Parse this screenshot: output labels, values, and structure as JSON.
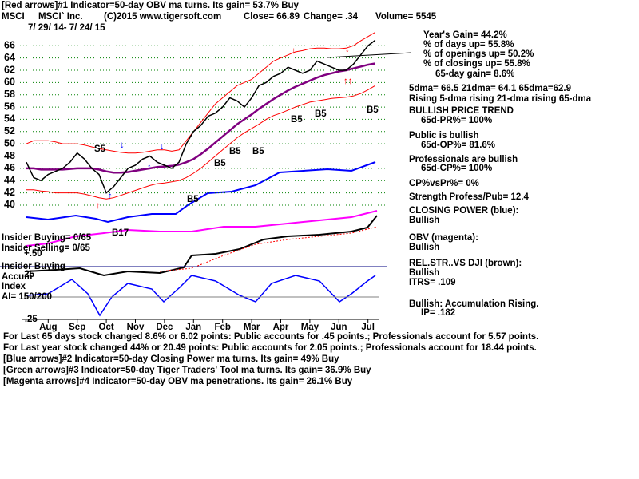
{
  "chart_data": {
    "type": "line",
    "title": "[Red arrows]#1 Indicator=50-day OBV ma turns. Its gain= 53.7% Buy",
    "header": [
      "MSCI",
      "MSCI` Inc.",
      "(C)2015 www.tigersoft.com",
      "Close= 66.89",
      "Change= .34",
      "Volume= 5545"
    ],
    "date_range": "7/ 29/ 14- 7/ 24/ 15",
    "categories": [
      null,
      null,
      null,
      "Aug",
      null,
      null,
      null,
      "Sep",
      null,
      null,
      null,
      "Oct",
      null,
      null,
      null,
      "Nov",
      null,
      null,
      null,
      "Dec",
      null,
      null,
      null,
      "Jan",
      null,
      null,
      null,
      "Feb",
      null,
      null,
      null,
      "Mar",
      null,
      null,
      null,
      "Apr",
      null,
      null,
      null,
      "May",
      null,
      null,
      null,
      "Jun",
      null,
      null,
      null,
      "Jul",
      null
    ],
    "series": [
      {
        "color": "#ff0000",
        "values": [
          50,
          50.5,
          50.5,
          50.5,
          50.3,
          50,
          50,
          50,
          49.8,
          49.5,
          49.2,
          49,
          48.8,
          48.6,
          48.5,
          48.5,
          48.6,
          48.8,
          49,
          49,
          48.8,
          49,
          50.5,
          52,
          53.5,
          55,
          56.5,
          57.5,
          58.5,
          59.5,
          60,
          60.5,
          61.5,
          62.5,
          63.5,
          64,
          64.5,
          65,
          65.2,
          65.5,
          65.6,
          65.6,
          65.5,
          65.5,
          65.6,
          66,
          66.8,
          67.5,
          68.2
        ]
      },
      {
        "color": "#ff0000",
        "values": [
          42.5,
          42.5,
          42.3,
          42.2,
          42,
          42,
          42,
          42,
          41.8,
          41.5,
          41.2,
          41,
          41.2,
          41.6,
          42,
          42.4,
          42.8,
          43.2,
          43.5,
          43.6,
          43.8,
          44,
          44.5,
          45.2,
          46,
          47,
          48,
          49,
          50,
          51,
          51.8,
          52.5,
          53.2,
          54,
          54.6,
          55,
          55.5,
          56,
          56.4,
          56.8,
          57,
          57.2,
          57.4,
          57.5,
          57.6,
          57.8,
          58.2,
          58.8,
          59.5
        ]
      },
      {
        "color": "#800080",
        "values": [
          46,
          46,
          45.8,
          45.8,
          45.8,
          45.8,
          45.9,
          46,
          46,
          46,
          45.8,
          45.5,
          45.3,
          45.3,
          45.4,
          45.6,
          45.8,
          46,
          46.2,
          46.3,
          46.4,
          46.6,
          47,
          47.5,
          48.3,
          49.2,
          50.2,
          51.2,
          52.2,
          53.2,
          54,
          54.8,
          55.7,
          56.5,
          57.3,
          58,
          58.7,
          59.3,
          59.8,
          60.3,
          60.8,
          61.2,
          61.5,
          61.8,
          62,
          62.3,
          62.6,
          62.9,
          63.1
        ]
      },
      {
        "color": "#000000",
        "values": [
          47,
          44.5,
          44,
          45,
          45.5,
          46,
          47,
          48.5,
          47.5,
          46,
          45,
          42,
          43,
          44.5,
          46,
          46.5,
          47.5,
          48,
          47,
          46.5,
          46,
          47,
          50,
          52,
          53,
          54.5,
          55,
          56,
          57.5,
          57,
          56,
          57.5,
          59.5,
          60,
          61,
          61.5,
          62.5,
          62,
          61.5,
          62,
          63.5,
          63,
          62.5,
          62,
          62,
          63,
          64.5,
          66,
          66.9
        ]
      }
    ],
    "ylim": [
      38.3,
      68.9
    ],
    "yticks": [
      40,
      42,
      44,
      46,
      48,
      50,
      52,
      54,
      56,
      58,
      60,
      62,
      64,
      66
    ],
    "grid": true,
    "annotations": [
      "S5",
      "B5",
      "B5",
      "B5",
      "B5",
      "B5",
      "B5",
      "B5",
      "B17"
    ],
    "lower_labels": [
      "Insider Buying= 0/65",
      "Insider Selling= 0/65",
      "+.50",
      "Insider Buying",
      "Accum",
      ".25",
      "Index",
      "AI= 150/200",
      "-.25"
    ],
    "right_panel": [
      "Year's Gain= 44.2%",
      "% of days up= 55.8%",
      "% of openings up= 50.2%",
      "% of closings up= 55.8%",
      "65-day gain= 8.6%",
      "5dma= 66.5 21dma= 64.1 65dma=62.9",
      "Rising 5-dma rising 21-dma rising 65-dma",
      "BULLISH PRICE TREND",
      "65d-PR%= 100%",
      "Public is bullish",
      "65d-OP%= 81.6%",
      "Professionals are bullish",
      "65d-CP%= 100%",
      "CP%vsPr%= 0%",
      "Strength Profess/Pub= 12.4",
      "CLOSING POWER (blue):",
      "Bullish",
      "OBV (magenta):",
      "Bullish",
      "REL.STR..VS DJI (brown):",
      "Bullish",
      "ITRS= .109",
      "Bullish: Accumulation Rising.",
      "IP= .182"
    ],
    "footer": [
      "For Last 65 days stock changed  8.6% or  6.02 points:  Public accounts for  .45 points.;  Professionals account for  5.57 points.",
      "For Last year stock changed  44% or  20.49 points:  Public accounts for  2.05 points.;  Professionals account for  18.44 points.",
      "[Blue arrows]#2 Indicator=50-day Closing Power ma turns. Its gain= 49% Buy",
      "[Green arrows]#3 Indicator=50-day Tiger Traders' Tool ma turns. Its gain= 36.9% Buy",
      "[Magenta arrows]#4 Indicator=50-day OBV ma penetrations. Its gain= 26.1% Buy"
    ]
  }
}
